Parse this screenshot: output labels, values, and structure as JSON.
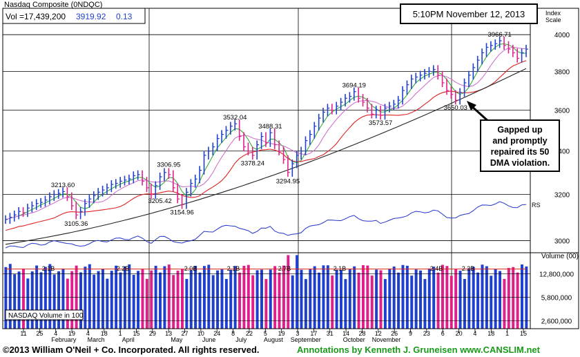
{
  "header": {
    "title": "Nasdaq Composite  (0NDQC)",
    "vol_label": "Vol =17,439,200",
    "price": "3919.92",
    "change": "0.13",
    "timestamp": "5:10PM November 12, 2013",
    "index_scale_label": "Index\nScale"
  },
  "footer": {
    "copyright": "©2013 William O'Neil + Co. Incorporated. All rights reserved.",
    "annotations": "Annotations by Kenneth J. Gruneisen www.CANSLIM.net"
  },
  "callout": {
    "text": [
      "Gapped up",
      "and promptly",
      "repaired its 50",
      "DMA violation."
    ]
  },
  "colors": {
    "up_bar": "#1f3fcf",
    "down_bar": "#e0208a",
    "ma50": "#dd2222",
    "ma200": "#222222",
    "ma10": "#22aa22",
    "ma21": "#cc66cc",
    "rs_line": "#2233cc",
    "annotation_green": "#1a9a1a"
  },
  "chart_data": [
    {
      "type": "line",
      "title": "Nasdaq Composite  (0NDQC)",
      "y_scale": "log",
      "ylim": [
        2950,
        4150
      ],
      "y_ticks": [
        3000,
        3200,
        3400,
        3600,
        3800,
        4000
      ],
      "grid": true,
      "x_ticks": [
        "11",
        "25",
        "4",
        "19",
        "4",
        "18",
        "1",
        "15",
        "29",
        "13",
        "27",
        "10",
        "24",
        "8",
        "22",
        "5",
        "19",
        "3",
        "17",
        "31",
        "14",
        "28",
        "12",
        "26",
        "9",
        "23",
        "6",
        "20",
        "4",
        "18",
        "1",
        "15"
      ],
      "x_month_labels": [
        "February",
        "March",
        "April",
        "May",
        "June",
        "July",
        "August",
        "September",
        "October",
        "November"
      ],
      "price_labels": [
        {
          "text": "3213.60",
          "value": 3213.6
        },
        {
          "text": "3105.36",
          "value": 3105.36
        },
        {
          "text": "3205.42",
          "value": 3205.42
        },
        {
          "text": "3306.95",
          "value": 3306.95
        },
        {
          "text": "3154.96",
          "value": 3154.96
        },
        {
          "text": "3532.04",
          "value": 3532.04
        },
        {
          "text": "3378.24",
          "value": 3378.24
        },
        {
          "text": "3488.31",
          "value": 3488.31
        },
        {
          "text": "3294.95",
          "value": 3294.95
        },
        {
          "text": "3694.19",
          "value": 3694.19
        },
        {
          "text": "3573.57",
          "value": 3573.57
        },
        {
          "text": "3650.03",
          "value": 3650.03
        },
        {
          "text": "3966.71",
          "value": 3966.71
        }
      ],
      "price_series": [
        3090,
        3100,
        3110,
        3125,
        3120,
        3140,
        3150,
        3160,
        3165,
        3175,
        3190,
        3200,
        3205,
        3213,
        3190,
        3150,
        3110,
        3125,
        3160,
        3180,
        3195,
        3210,
        3220,
        3230,
        3245,
        3250,
        3260,
        3265,
        3270,
        3285,
        3290,
        3260,
        3230,
        3200,
        3240,
        3280,
        3300,
        3290,
        3230,
        3180,
        3155,
        3210,
        3250,
        3270,
        3310,
        3380,
        3400,
        3420,
        3460,
        3480,
        3500,
        3520,
        3532,
        3470,
        3420,
        3400,
        3380,
        3430,
        3470,
        3440,
        3488,
        3430,
        3400,
        3360,
        3300,
        3340,
        3380,
        3400,
        3450,
        3480,
        3520,
        3560,
        3590,
        3610,
        3600,
        3620,
        3640,
        3660,
        3670,
        3694,
        3660,
        3640,
        3610,
        3580,
        3600,
        3574,
        3610,
        3620,
        3630,
        3650,
        3700,
        3730,
        3760,
        3770,
        3780,
        3790,
        3800,
        3810,
        3780,
        3740,
        3700,
        3680,
        3650,
        3690,
        3740,
        3780,
        3820,
        3860,
        3900,
        3930,
        3940,
        3950,
        3966,
        3940,
        3920,
        3900,
        3870,
        3900,
        3920
      ]
    },
    {
      "type": "line",
      "name": "RS",
      "label": "RS"
    },
    {
      "type": "bar",
      "title": "Volume (00)",
      "legend": "NASDAQ Volume in 100",
      "y_scale": "log",
      "ylim": [
        2000000,
        26000000
      ],
      "y_ticks": [
        {
          "text": "12,800,000",
          "value": 12800000
        },
        {
          "text": "5,800,000",
          "value": 5800000
        },
        {
          "text": "2,600,000",
          "value": 2600000
        }
      ],
      "volume_avg_labels": [
        "2.1B",
        "2.2B",
        "2.0B",
        "2.1B",
        "2.7B",
        "2.1B",
        "2.4B",
        "2.2B"
      ]
    }
  ]
}
